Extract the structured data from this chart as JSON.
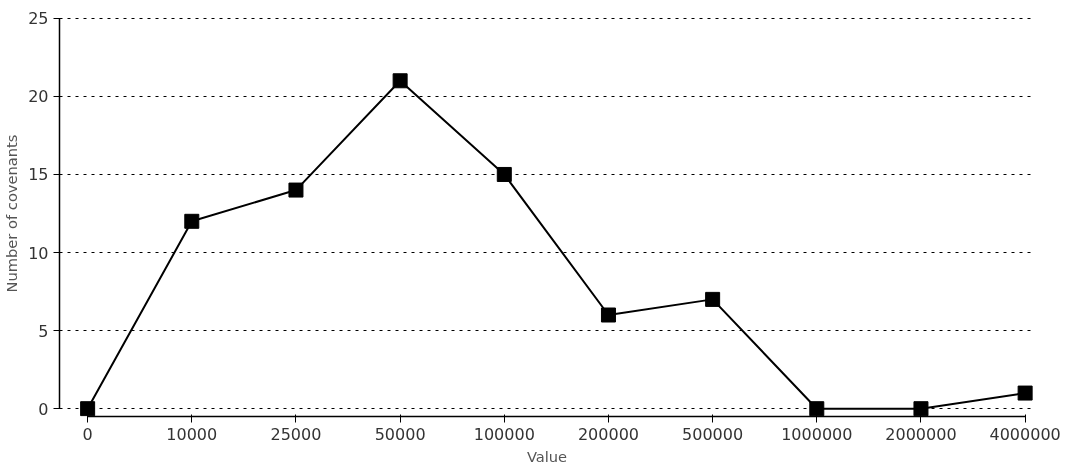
{
  "chart_data": {
    "type": "line",
    "xlabel": "Value",
    "ylabel": "Number of covenants",
    "categories": [
      "0",
      "10000",
      "25000",
      "50000",
      "100000",
      "200000",
      "500000",
      "1000000",
      "2000000",
      "4000000"
    ],
    "series": [
      {
        "color": "#000000",
        "values": [
          0,
          12,
          14,
          21,
          15,
          6,
          7,
          0,
          0,
          1
        ]
      }
    ],
    "ylim": [
      0,
      25
    ],
    "yticks": [
      0,
      5,
      10,
      15,
      20,
      25
    ],
    "grid": "y",
    "marker": "square",
    "line_style": "solid"
  }
}
